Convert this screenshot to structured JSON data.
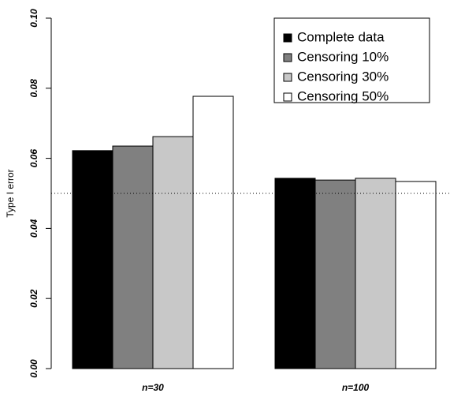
{
  "chart_data": {
    "type": "bar",
    "y_label": "Type I error",
    "categories": [
      "n=30",
      "n=100"
    ],
    "series": [
      {
        "name": "Complete data",
        "color": "#000000",
        "values": [
          0.0622,
          0.0543
        ]
      },
      {
        "name": "Censoring 10%",
        "color": "#808080",
        "values": [
          0.0635,
          0.0538
        ]
      },
      {
        "name": "Censoring 30%",
        "color": "#c8c8c8",
        "values": [
          0.0662,
          0.0543
        ]
      },
      {
        "name": "Censoring 50%",
        "color": "#ffffff",
        "values": [
          0.0777,
          0.0534
        ]
      }
    ],
    "ylim": [
      0,
      0.1
    ],
    "yticks": [
      {
        "value": 0,
        "label": "0.00"
      },
      {
        "value": 0.02,
        "label": "0.02"
      },
      {
        "value": 0.04,
        "label": "0.04"
      },
      {
        "value": 0.06,
        "label": "0.06"
      },
      {
        "value": 0.08,
        "label": "0.08"
      },
      {
        "value": 0.1,
        "label": "0.10"
      }
    ],
    "hline": 0.05,
    "legend": "top-right"
  }
}
